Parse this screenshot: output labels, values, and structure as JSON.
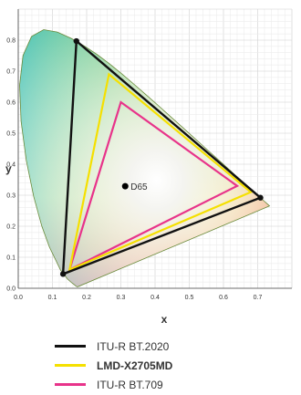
{
  "chart_data": {
    "type": "scatter",
    "title": "",
    "xlabel": "x",
    "ylabel": "y",
    "xlim": [
      0.0,
      0.8
    ],
    "ylim": [
      0.0,
      0.9
    ],
    "xticks": [
      "0.0",
      "0.1",
      "0.2",
      "0.3",
      "0.4",
      "0.5",
      "0.6",
      "0.7"
    ],
    "yticks": [
      "0.0",
      "0.1",
      "0.2",
      "0.3",
      "0.4",
      "0.5",
      "0.6",
      "0.7",
      "0.8"
    ],
    "grid": true,
    "white_point": {
      "name": "D65",
      "x": 0.3127,
      "y": 0.329
    },
    "series": [
      {
        "name": "ITU-R BT.2020",
        "color": "#111111",
        "points": [
          [
            0.708,
            0.292
          ],
          [
            0.17,
            0.797
          ],
          [
            0.131,
            0.046
          ]
        ]
      },
      {
        "name": "LMD-X2705MD",
        "color": "#f5e000",
        "points": [
          [
            0.68,
            0.31
          ],
          [
            0.265,
            0.69
          ],
          [
            0.15,
            0.06
          ]
        ]
      },
      {
        "name": "ITU-R BT.709",
        "color": "#e8338a",
        "points": [
          [
            0.64,
            0.33
          ],
          [
            0.3,
            0.6
          ],
          [
            0.15,
            0.06
          ]
        ]
      }
    ],
    "legend": "bottom"
  }
}
